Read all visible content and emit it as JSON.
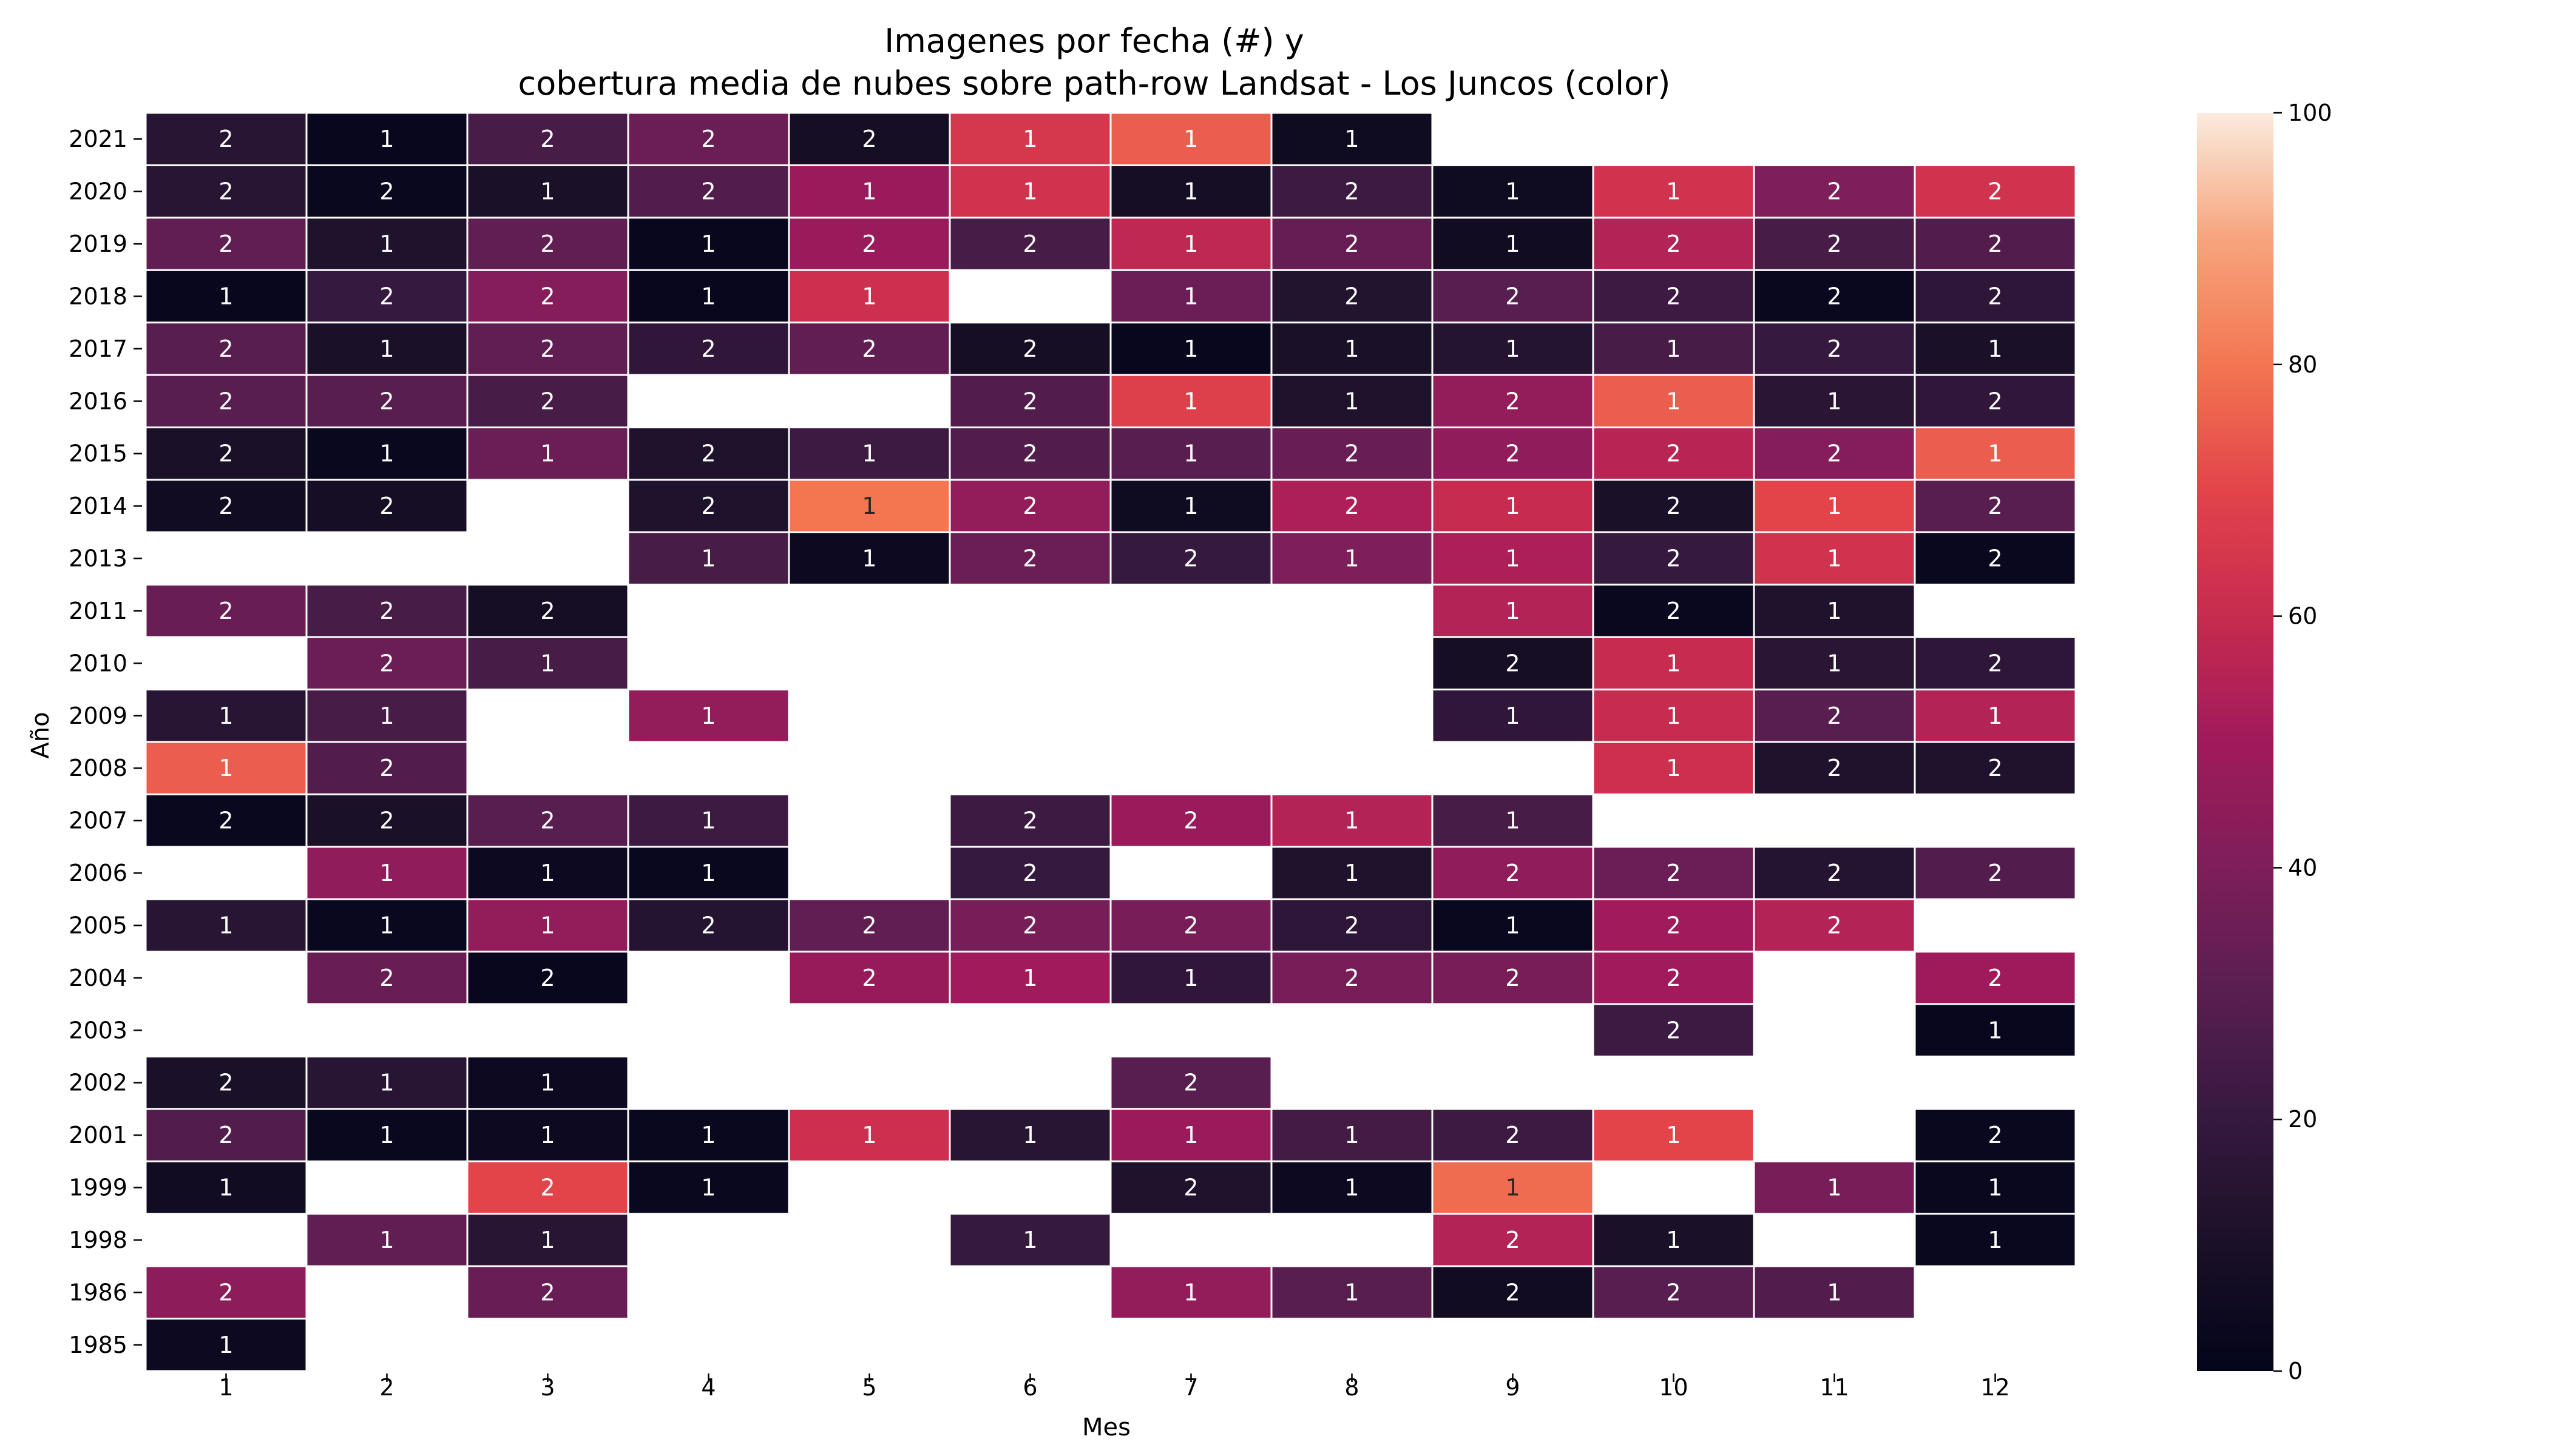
{
  "chart_data": {
    "type": "heatmap",
    "title_line1": "Imagenes por fecha (#) y",
    "title_line2": "cobertura media de nubes sobre path-row Landsat - Los Juncos (color)",
    "xlabel": "Mes",
    "ylabel": "Año",
    "x_categories": [
      "1",
      "2",
      "3",
      "4",
      "5",
      "6",
      "7",
      "8",
      "9",
      "10",
      "11",
      "12"
    ],
    "y_categories": [
      "2021",
      "2020",
      "2019",
      "2018",
      "2017",
      "2016",
      "2015",
      "2014",
      "2013",
      "2011",
      "2010",
      "2009",
      "2008",
      "2007",
      "2006",
      "2005",
      "2004",
      "2003",
      "2002",
      "2001",
      "1999",
      "1998",
      "1986",
      "1985"
    ],
    "colorbar": {
      "range": [
        0,
        100
      ],
      "ticks": [
        "0",
        "20",
        "40",
        "60",
        "80",
        "100"
      ],
      "colormap": "rocket"
    },
    "counts": [
      [
        2,
        1,
        2,
        2,
        2,
        1,
        1,
        1,
        null,
        null,
        null,
        null
      ],
      [
        2,
        2,
        1,
        2,
        1,
        1,
        1,
        2,
        1,
        1,
        2,
        2
      ],
      [
        2,
        1,
        2,
        1,
        2,
        2,
        1,
        2,
        1,
        2,
        2,
        2
      ],
      [
        1,
        2,
        2,
        1,
        1,
        null,
        1,
        2,
        2,
        2,
        2,
        2
      ],
      [
        2,
        1,
        2,
        2,
        2,
        2,
        1,
        1,
        1,
        1,
        2,
        1
      ],
      [
        2,
        2,
        2,
        null,
        null,
        2,
        1,
        1,
        2,
        1,
        1,
        2
      ],
      [
        2,
        1,
        1,
        2,
        1,
        2,
        1,
        2,
        2,
        2,
        2,
        1
      ],
      [
        2,
        2,
        null,
        2,
        1,
        2,
        1,
        2,
        1,
        2,
        1,
        2
      ],
      [
        null,
        null,
        null,
        1,
        1,
        2,
        2,
        1,
        1,
        2,
        1,
        2
      ],
      [
        2,
        2,
        2,
        null,
        null,
        null,
        null,
        null,
        1,
        2,
        1,
        null
      ],
      [
        null,
        2,
        1,
        null,
        null,
        null,
        null,
        null,
        2,
        1,
        1,
        2
      ],
      [
        1,
        1,
        null,
        1,
        null,
        null,
        null,
        null,
        1,
        1,
        2,
        1
      ],
      [
        1,
        2,
        null,
        null,
        null,
        null,
        null,
        null,
        null,
        1,
        2,
        2
      ],
      [
        2,
        2,
        2,
        1,
        null,
        2,
        2,
        1,
        1,
        null,
        null,
        null
      ],
      [
        null,
        1,
        1,
        1,
        null,
        2,
        null,
        1,
        2,
        2,
        2,
        2
      ],
      [
        1,
        1,
        1,
        2,
        2,
        2,
        2,
        2,
        1,
        2,
        2,
        null
      ],
      [
        null,
        2,
        2,
        null,
        2,
        1,
        1,
        2,
        2,
        2,
        null,
        2
      ],
      [
        null,
        null,
        null,
        null,
        null,
        null,
        null,
        null,
        null,
        2,
        null,
        1
      ],
      [
        2,
        1,
        1,
        null,
        null,
        null,
        2,
        null,
        null,
        null,
        null,
        null
      ],
      [
        2,
        1,
        1,
        1,
        1,
        1,
        1,
        1,
        2,
        1,
        null,
        2
      ],
      [
        1,
        null,
        2,
        1,
        null,
        null,
        2,
        1,
        1,
        null,
        1,
        1
      ],
      [
        null,
        1,
        1,
        null,
        null,
        1,
        null,
        null,
        2,
        1,
        null,
        1
      ],
      [
        2,
        null,
        2,
        null,
        null,
        null,
        1,
        1,
        2,
        2,
        1,
        null
      ],
      [
        1,
        null,
        null,
        null,
        null,
        null,
        null,
        null,
        null,
        null,
        null,
        null
      ]
    ],
    "cloud_cover": [
      [
        15,
        2,
        25,
        35,
        8,
        65,
        75,
        5,
        null,
        null,
        null,
        null
      ],
      [
        15,
        3,
        10,
        28,
        48,
        63,
        8,
        22,
        5,
        63,
        40,
        63
      ],
      [
        32,
        12,
        32,
        2,
        48,
        25,
        58,
        33,
        6,
        55,
        25,
        28
      ],
      [
        2,
        20,
        42,
        2,
        62,
        null,
        35,
        13,
        30,
        22,
        3,
        17
      ],
      [
        30,
        10,
        32,
        18,
        32,
        8,
        2,
        10,
        14,
        25,
        20,
        10
      ],
      [
        30,
        30,
        25,
        null,
        null,
        28,
        68,
        12,
        46,
        75,
        16,
        18
      ],
      [
        10,
        3,
        35,
        12,
        22,
        28,
        30,
        34,
        45,
        56,
        42,
        75
      ],
      [
        6,
        8,
        null,
        12,
        80,
        46,
        5,
        53,
        60,
        10,
        70,
        30
      ],
      [
        null,
        null,
        null,
        25,
        4,
        35,
        20,
        40,
        53,
        20,
        63,
        3
      ],
      [
        34,
        25,
        8,
        null,
        null,
        null,
        null,
        null,
        55,
        3,
        12,
        null
      ],
      [
        null,
        35,
        25,
        null,
        null,
        null,
        null,
        null,
        8,
        60,
        16,
        17
      ],
      [
        15,
        25,
        null,
        46,
        null,
        null,
        null,
        null,
        18,
        60,
        30,
        55
      ],
      [
        75,
        28,
        null,
        null,
        null,
        null,
        null,
        null,
        null,
        62,
        12,
        12
      ],
      [
        3,
        10,
        30,
        22,
        null,
        22,
        48,
        55,
        25,
        null,
        null,
        null
      ],
      [
        null,
        45,
        4,
        3,
        null,
        20,
        null,
        12,
        45,
        35,
        14,
        28
      ],
      [
        15,
        3,
        46,
        14,
        32,
        38,
        38,
        17,
        3,
        50,
        55,
        null
      ],
      [
        null,
        34,
        2,
        null,
        47,
        50,
        18,
        38,
        38,
        50,
        null,
        49
      ],
      [
        null,
        null,
        null,
        null,
        null,
        null,
        null,
        null,
        null,
        22,
        null,
        2
      ],
      [
        10,
        15,
        4,
        null,
        null,
        null,
        30,
        null,
        null,
        null,
        null,
        null
      ],
      [
        28,
        3,
        4,
        3,
        62,
        15,
        48,
        24,
        22,
        70,
        null,
        3
      ],
      [
        6,
        null,
        70,
        3,
        null,
        null,
        12,
        4,
        78,
        null,
        38,
        3
      ],
      [
        null,
        32,
        15,
        null,
        null,
        20,
        null,
        null,
        55,
        10,
        null,
        3
      ],
      [
        44,
        null,
        34,
        null,
        null,
        null,
        46,
        30,
        6,
        30,
        28,
        null
      ],
      [
        4,
        null,
        null,
        null,
        null,
        null,
        null,
        null,
        null,
        null,
        null,
        null
      ]
    ]
  }
}
